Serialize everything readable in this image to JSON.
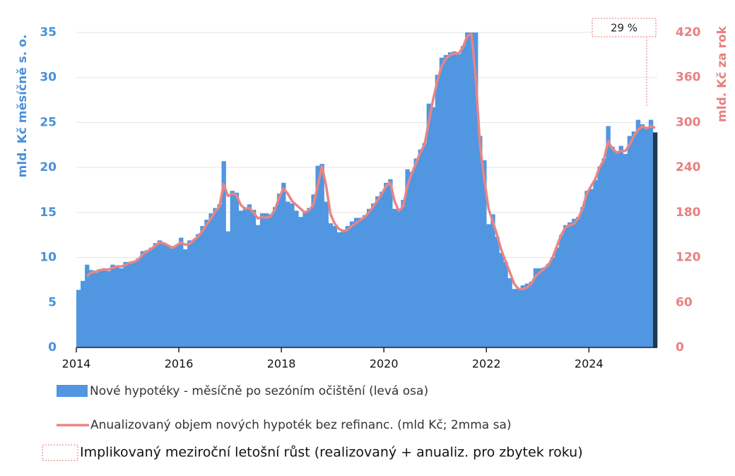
{
  "chart_data": {
    "type": "bar_line",
    "categories": [
      "2014",
      null,
      null,
      null,
      null,
      null,
      null,
      null,
      null,
      null,
      null,
      null,
      null,
      null,
      null,
      null,
      null,
      null,
      null,
      null,
      null,
      null,
      null,
      null,
      "2016",
      null,
      null,
      null,
      null,
      null,
      null,
      null,
      null,
      null,
      null,
      null,
      null,
      null,
      null,
      null,
      null,
      null,
      null,
      null,
      null,
      null,
      null,
      null,
      "2018",
      null,
      null,
      null,
      null,
      null,
      null,
      null,
      null,
      null,
      null,
      null,
      null,
      null,
      null,
      null,
      null,
      null,
      null,
      null,
      null,
      null,
      null,
      null,
      "2020",
      null,
      null,
      null,
      null,
      null,
      null,
      null,
      null,
      null,
      null,
      null,
      null,
      null,
      null,
      null,
      null,
      null,
      null,
      null,
      null,
      null,
      null,
      null,
      "2022",
      null,
      null,
      null,
      null,
      null,
      null,
      null,
      null,
      null,
      null,
      null,
      null,
      null,
      null,
      null,
      null,
      null,
      null,
      null,
      null,
      null,
      null,
      null,
      "2024",
      null,
      null,
      null,
      null,
      null,
      null,
      null,
      null,
      null,
      null,
      null,
      null,
      null,
      null,
      null
    ],
    "series": [
      {
        "name": "Nové hypotéky - měsíčně po sezóním očištění (levá osa)",
        "color": "#5096e1",
        "last_color": "#1e3a52",
        "values": [
          6.4,
          7.4,
          9.2,
          8.6,
          8.3,
          8.7,
          8.8,
          8.5,
          9.2,
          9.1,
          8.8,
          9.5,
          9.5,
          9.6,
          9.9,
          10.7,
          10.8,
          11.1,
          11.6,
          11.9,
          11.5,
          11.3,
          11.0,
          11.4,
          12.2,
          10.9,
          11.9,
          12.0,
          12.6,
          13.5,
          14.2,
          14.9,
          15.5,
          15.9,
          20.7,
          12.9,
          17.4,
          17.2,
          15.2,
          15.5,
          15.9,
          15.3,
          13.6,
          14.9,
          14.9,
          14.8,
          15.6,
          17.1,
          18.3,
          16.2,
          16.0,
          15.2,
          14.5,
          15.0,
          15.5,
          17.0,
          20.2,
          20.4,
          16.2,
          13.8,
          13.5,
          12.8,
          13.1,
          13.5,
          14.0,
          14.4,
          14.4,
          14.7,
          15.4,
          16.0,
          16.8,
          17.3,
          18.3,
          18.7,
          15.4,
          15.3,
          16.4,
          19.8,
          19.5,
          21.0,
          22.0,
          22.7,
          27.1,
          26.7,
          30.3,
          32.2,
          32.5,
          32.8,
          32.9,
          32.6,
          33.5,
          35.0,
          35.0,
          35.0,
          23.5,
          20.8,
          13.7,
          14.8,
          12.3,
          10.5,
          9.5,
          7.7,
          6.5,
          6.6,
          6.9,
          7.1,
          7.3,
          8.8,
          8.8,
          8.9,
          9.3,
          10.0,
          11.1,
          12.5,
          13.6,
          13.9,
          14.3,
          14.5,
          15.6,
          17.4,
          17.6,
          18.6,
          20.1,
          21.0,
          24.6,
          22.3,
          21.8,
          22.4,
          21.5,
          23.5,
          24.0,
          25.3,
          24.8,
          24.5,
          25.3,
          23.9
        ]
      },
      {
        "name": "Anualizovaný objem nových hypoték bez refinanc. (mld Kč; 2mma sa)",
        "color": "#e88585",
        "axis": "y2",
        "values": [
          null,
          null,
          95,
          100,
          101,
          103,
          104,
          104,
          106,
          108,
          108,
          110,
          113,
          114,
          117,
          124,
          128,
          131,
          136,
          140,
          139,
          136,
          133,
          136,
          140,
          137,
          138,
          143,
          148,
          155,
          164,
          172,
          181,
          188,
          218,
          202,
          205,
          203,
          190,
          185,
          186,
          180,
          172,
          174,
          173,
          175,
          184,
          200,
          212,
          205,
          195,
          190,
          185,
          180,
          183,
          190,
          215,
          242,
          215,
          178,
          165,
          158,
          155,
          157,
          162,
          166,
          170,
          174,
          180,
          188,
          196,
          205,
          215,
          220,
          195,
          182,
          188,
          215,
          232,
          245,
          260,
          270,
          300,
          330,
          355,
          375,
          385,
          390,
          392,
          392,
          400,
          415,
          418,
          360,
          270,
          225,
          185,
          168,
          150,
          130,
          115,
          100,
          85,
          78,
          78,
          80,
          85,
          95,
          100,
          105,
          110,
          120,
          135,
          150,
          160,
          163,
          165,
          172,
          185,
          205,
          215,
          225,
          240,
          250,
          275,
          265,
          260,
          262,
          262,
          270,
          282,
          290,
          295,
          292,
          295,
          293
        ]
      }
    ],
    "ylabel": "mld. Kč měsíčně s. o.",
    "y2label": "mld. Kč za rok",
    "ylim": [
      0,
      35
    ],
    "yticks": [
      0,
      5,
      10,
      15,
      20,
      25,
      30,
      35
    ],
    "y2lim": [
      0,
      420
    ],
    "y2ticks": [
      0,
      60,
      120,
      180,
      240,
      300,
      360,
      420
    ],
    "grid": true,
    "annotation": {
      "text": "29 %",
      "legend": "Implikovaný meziroční letošní růst (realizovaný + anualiz. pro zbytek roku)",
      "color": "#f0a0a0"
    }
  }
}
